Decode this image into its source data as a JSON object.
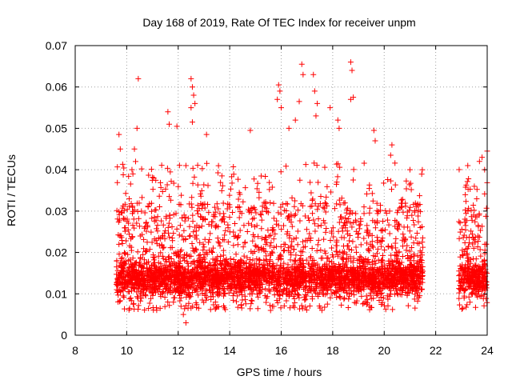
{
  "chart_data": {
    "type": "scatter",
    "title": "Day 168 of 2019, Rate Of TEC Index for receiver unpm",
    "xlabel": "GPS time / hours",
    "ylabel": "ROTI / TECUs",
    "xlim": [
      8,
      24
    ],
    "ylim": [
      0,
      0.07
    ],
    "xticks": [
      "8",
      "10",
      "12",
      "14",
      "16",
      "18",
      "20",
      "22",
      "24"
    ],
    "yticks": [
      "0",
      "0.01",
      "0.02",
      "0.03",
      "0.04",
      "0.05",
      "0.06",
      "0.07"
    ],
    "grid": true,
    "marker": "+",
    "color": "#ff0000",
    "coverage": [
      {
        "start": 9.6,
        "end": 21.5
      },
      {
        "start": 22.9,
        "end": 24.0
      }
    ],
    "series": [
      {
        "name": "ROTI",
        "points": [
          [
            9.7,
            0.0485
          ],
          [
            9.75,
            0.045
          ],
          [
            10.3,
            0.045
          ],
          [
            10.45,
            0.062
          ],
          [
            10.4,
            0.05
          ],
          [
            11.6,
            0.054
          ],
          [
            11.65,
            0.051
          ],
          [
            11.95,
            0.0505
          ],
          [
            12.3,
            0.041
          ],
          [
            12.5,
            0.062
          ],
          [
            12.55,
            0.06
          ],
          [
            12.6,
            0.058
          ],
          [
            12.65,
            0.056
          ],
          [
            12.5,
            0.055
          ],
          [
            12.55,
            0.0515
          ],
          [
            13.1,
            0.0485
          ],
          [
            12.2,
            0.005
          ],
          [
            12.3,
            0.003
          ],
          [
            14.8,
            0.0495
          ],
          [
            15.9,
            0.0605
          ],
          [
            15.95,
            0.059
          ],
          [
            15.85,
            0.057
          ],
          [
            16.0,
            0.055
          ],
          [
            16.3,
            0.05
          ],
          [
            16.55,
            0.052
          ],
          [
            16.7,
            0.0565
          ],
          [
            16.8,
            0.0655
          ],
          [
            16.85,
            0.063
          ],
          [
            17.25,
            0.063
          ],
          [
            17.3,
            0.059
          ],
          [
            17.4,
            0.056
          ],
          [
            17.35,
            0.053
          ],
          [
            17.9,
            0.055
          ],
          [
            18.2,
            0.052
          ],
          [
            18.25,
            0.05
          ],
          [
            18.7,
            0.066
          ],
          [
            18.75,
            0.064
          ],
          [
            18.8,
            0.0575
          ],
          [
            18.7,
            0.057
          ],
          [
            19.6,
            0.0495
          ],
          [
            19.65,
            0.047
          ],
          [
            20.3,
            0.046
          ],
          [
            20.25,
            0.0435
          ],
          [
            21.0,
            0.04
          ],
          [
            21.4,
            0.026
          ],
          [
            23.25,
            0.03
          ],
          [
            23.5,
            0.036
          ],
          [
            23.7,
            0.042
          ],
          [
            23.8,
            0.043
          ],
          [
            23.9,
            0.04
          ],
          [
            24.0,
            0.0445
          ]
        ]
      }
    ]
  }
}
